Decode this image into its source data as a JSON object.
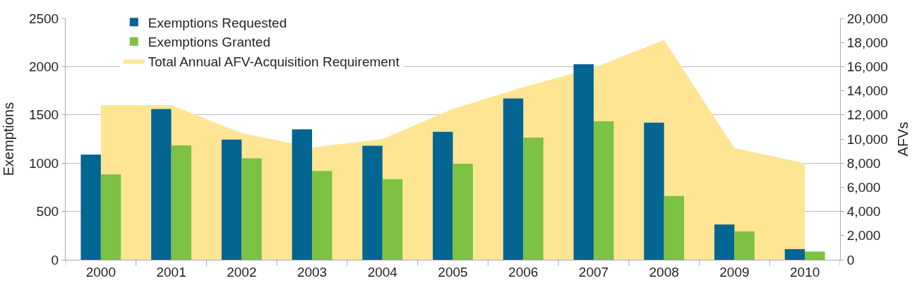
{
  "chart_data": {
    "type": "bar",
    "categories": [
      "2000",
      "2001",
      "2002",
      "2003",
      "2004",
      "2005",
      "2006",
      "2007",
      "2008",
      "2009",
      "2010"
    ],
    "series": [
      {
        "name": "Total Annual AFV-Acquisition Requirement",
        "type": "area",
        "axis": "y2",
        "color": "#fde594",
        "values": [
          12800,
          12800,
          10500,
          9300,
          10000,
          12500,
          14300,
          15900,
          18200,
          9250,
          8000
        ]
      },
      {
        "name": "Exemptions Requested",
        "color": "#036591",
        "values": [
          1090,
          1560,
          1245,
          1350,
          1180,
          1325,
          1670,
          2025,
          1420,
          365,
          110
        ]
      },
      {
        "name": "Exemptions Granted",
        "color": "#7dc242",
        "values": [
          885,
          1185,
          1050,
          920,
          835,
          995,
          1265,
          1435,
          660,
          295,
          85
        ]
      }
    ],
    "ylabel": "Exemptions",
    "y2label": "AFVs",
    "ylim": [
      0,
      2500
    ],
    "yticks": [
      0,
      500,
      1000,
      1500,
      2000,
      2500
    ],
    "y2lim": [
      0,
      20000
    ],
    "y2ticks": [
      0,
      {
        "value": 2000,
        "label": "2,000"
      },
      {
        "value": 4000,
        "label": "4,000"
      },
      {
        "value": 6000,
        "label": "6,000"
      },
      {
        "value": 8000,
        "label": "8,000"
      },
      {
        "value": 10000,
        "label": "10,000"
      },
      {
        "value": 12000,
        "label": "12,000"
      },
      {
        "value": 14000,
        "label": "14,000"
      },
      {
        "value": 16000,
        "label": "16,000"
      },
      {
        "value": 18000,
        "label": "18,000"
      },
      {
        "value": 20000,
        "label": "20,000"
      }
    ],
    "grid": "y",
    "legend": "top left"
  }
}
